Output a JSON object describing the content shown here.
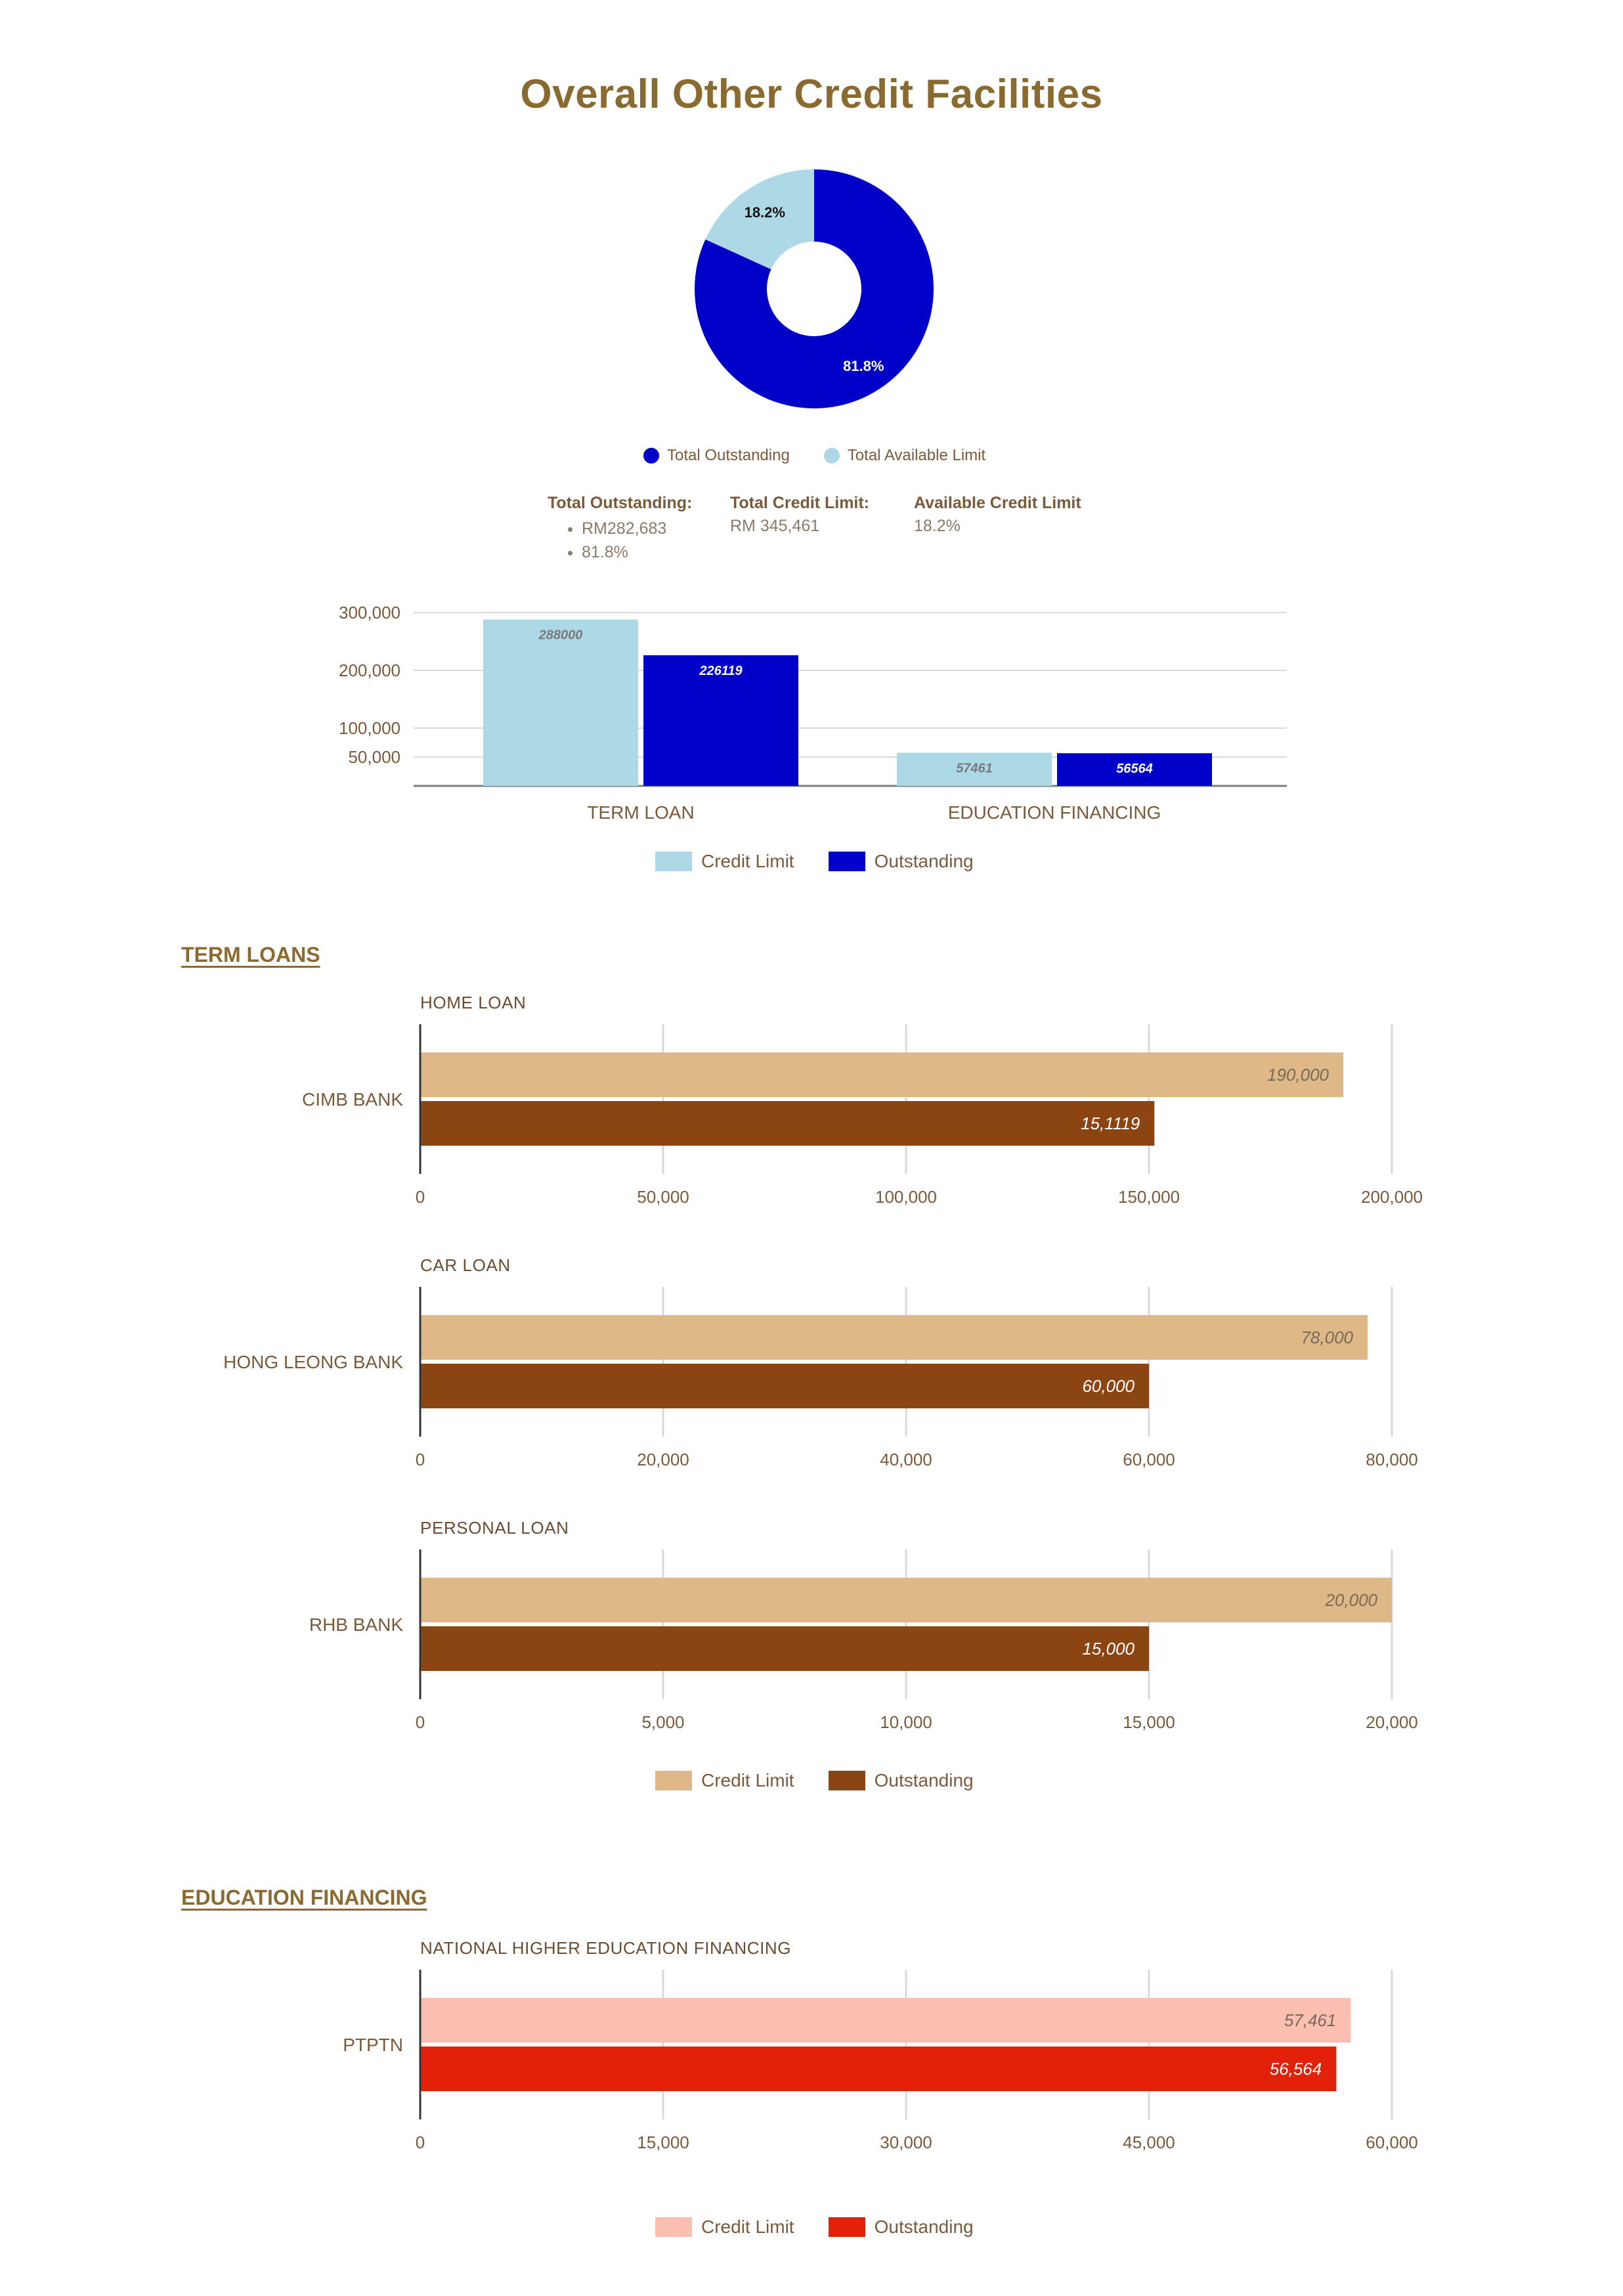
{
  "header": {
    "title": "Overall Other Credit Facilities"
  },
  "colors": {
    "title": "#8b6a30",
    "outstanding_blue": "#0000c8",
    "available_light_blue": "#add8e6",
    "term_limit_tan": "#deb887",
    "term_outstanding_brown": "#8b4513",
    "edu_limit_pink": "#fbbfb2",
    "edu_outstanding_red": "#e3200a"
  },
  "summary": {
    "legend": [
      "Total Outstanding",
      "Total Available Limit"
    ],
    "total_outstanding_label": "Total Outstanding:",
    "total_outstanding_items": [
      "RM282,683",
      "81.8%"
    ],
    "total_credit_limit_label": "Total Credit Limit:",
    "total_credit_limit_value": "RM 345,461",
    "available_credit_limit_label": "Available Credit Limit",
    "available_credit_limit_value": "18.2%"
  },
  "sections": {
    "term_loans": "TERM LOANS",
    "education_financing": "EDUCATION FINANCING"
  },
  "legend_labels": {
    "credit_limit": "Credit Limit",
    "outstanding": "Outstanding"
  },
  "chart_data": [
    {
      "type": "pie",
      "donut": true,
      "slices": [
        {
          "label": "Total Outstanding",
          "value": 81.8,
          "display": "81.8%"
        },
        {
          "label": "Total Available Limit",
          "value": 18.2,
          "display": "18.2%"
        }
      ],
      "legend_position": "bottom"
    },
    {
      "type": "bar",
      "categories": [
        "TERM LOAN",
        "EDUCATION FINANCING"
      ],
      "series": [
        {
          "name": "Credit Limit",
          "values": [
            288000,
            57461
          ],
          "labels": [
            "288000",
            "57461"
          ]
        },
        {
          "name": "Outstanding",
          "values": [
            226119,
            56564
          ],
          "labels": [
            "226119",
            "56564"
          ]
        }
      ],
      "yticks": [
        50000,
        100000,
        200000,
        300000
      ],
      "ytick_labels": [
        "50,000",
        "100,000",
        "200,000",
        "300,000"
      ],
      "ylim": [
        0,
        300000
      ],
      "grid": true,
      "legend_position": "bottom"
    },
    {
      "type": "bar",
      "orientation": "horizontal",
      "subtitle": "HOME LOAN",
      "categories": [
        "CIMB BANK"
      ],
      "series": [
        {
          "name": "Credit Limit",
          "values": [
            190000
          ],
          "labels": [
            "190,000"
          ]
        },
        {
          "name": "Outstanding",
          "values": [
            151119
          ],
          "labels": [
            "15,1119"
          ]
        }
      ],
      "xlim": [
        0,
        200000
      ],
      "xticks": [
        "0",
        "50,000",
        "100,000",
        "150,000",
        "200,000"
      ]
    },
    {
      "type": "bar",
      "orientation": "horizontal",
      "subtitle": "CAR LOAN",
      "categories": [
        "HONG LEONG BANK"
      ],
      "series": [
        {
          "name": "Credit Limit",
          "values": [
            78000
          ],
          "labels": [
            "78,000"
          ]
        },
        {
          "name": "Outstanding",
          "values": [
            60000
          ],
          "labels": [
            "60,000"
          ]
        }
      ],
      "xlim": [
        0,
        80000
      ],
      "xticks": [
        "0",
        "20,000",
        "40,000",
        "60,000",
        "80,000"
      ]
    },
    {
      "type": "bar",
      "orientation": "horizontal",
      "subtitle": "PERSONAL LOAN",
      "categories": [
        "RHB BANK"
      ],
      "series": [
        {
          "name": "Credit Limit",
          "values": [
            20000
          ],
          "labels": [
            "20,000"
          ]
        },
        {
          "name": "Outstanding",
          "values": [
            15000
          ],
          "labels": [
            "15,000"
          ]
        }
      ],
      "xlim": [
        0,
        20000
      ],
      "xticks": [
        "0",
        "5,000",
        "10,000",
        "15,000",
        "20,000"
      ]
    },
    {
      "type": "bar",
      "orientation": "horizontal",
      "subtitle": "NATIONAL HIGHER EDUCATION FINANCING",
      "categories": [
        "PTPTN"
      ],
      "series": [
        {
          "name": "Credit Limit",
          "values": [
            57461
          ],
          "labels": [
            "57,461"
          ]
        },
        {
          "name": "Outstanding",
          "values": [
            56564
          ],
          "labels": [
            "56,564"
          ]
        }
      ],
      "xlim": [
        0,
        60000
      ],
      "xticks": [
        "0",
        "15,000",
        "30,000",
        "45,000",
        "60,000"
      ]
    }
  ]
}
